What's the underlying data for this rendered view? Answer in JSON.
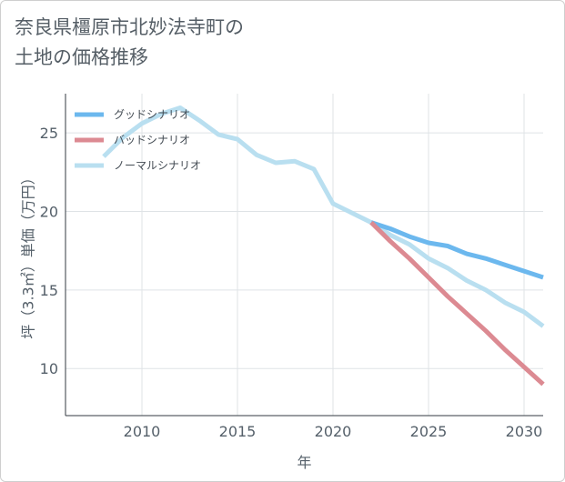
{
  "title": "奈良県橿原市北妙法寺町の\n土地の価格推移",
  "chart_data": {
    "type": "line",
    "title": "奈良県橿原市北妙法寺町の土地の価格推移",
    "xlabel": "年",
    "ylabel": "坪（3.3㎡）単価（万円）",
    "xlim": [
      2006,
      2031
    ],
    "ylim": [
      7,
      27.5
    ],
    "xticks": [
      2010,
      2015,
      2020,
      2025,
      2030
    ],
    "yticks": [
      10,
      15,
      20,
      25
    ],
    "grid": true,
    "legend_position": "top-left",
    "series": [
      {
        "name": "グッドシナリオ",
        "color": "#6cb8ee",
        "x": [
          2022,
          2023,
          2024,
          2025,
          2026,
          2027,
          2028,
          2029,
          2030,
          2031
        ],
        "y": [
          19.3,
          18.9,
          18.4,
          18.0,
          17.8,
          17.3,
          17.0,
          16.6,
          16.2,
          15.8
        ]
      },
      {
        "name": "バッドシナリオ",
        "color": "#dc8a92",
        "x": [
          2022,
          2023,
          2024,
          2025,
          2026,
          2027,
          2028,
          2029,
          2030,
          2031
        ],
        "y": [
          19.3,
          18.1,
          17.0,
          15.8,
          14.6,
          13.5,
          12.4,
          11.2,
          10.1,
          9.0
        ]
      },
      {
        "name": "ノーマルシナリオ",
        "color": "#b9dff0",
        "x": [
          2008,
          2009,
          2010,
          2011,
          2012,
          2013,
          2014,
          2015,
          2016,
          2017,
          2018,
          2019,
          2020,
          2021,
          2022,
          2023,
          2024,
          2025,
          2026,
          2027,
          2028,
          2029,
          2030,
          2031
        ],
        "y": [
          23.5,
          24.7,
          25.6,
          26.2,
          26.6,
          25.8,
          24.9,
          24.6,
          23.6,
          23.1,
          23.2,
          22.7,
          20.5,
          19.9,
          19.3,
          18.5,
          17.9,
          17.0,
          16.4,
          15.6,
          15.0,
          14.2,
          13.6,
          12.7
        ]
      }
    ]
  }
}
